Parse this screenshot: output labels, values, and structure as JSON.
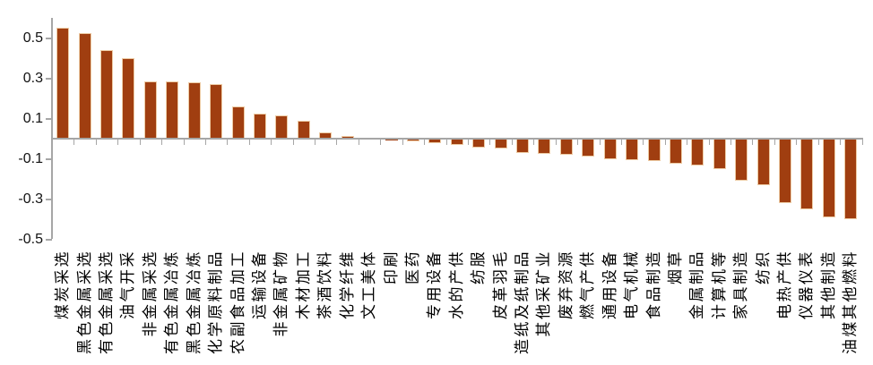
{
  "chart_data": {
    "type": "bar",
    "title": "",
    "xlabel": "",
    "ylabel": "",
    "grid": "off",
    "legend": "none",
    "bar_color": "#a03e10",
    "bar_border_color": "#edcba4",
    "axis_color": "#a6a6a6",
    "text_color": "#000000",
    "ylim": [
      -0.5,
      0.6
    ],
    "ytick_labels": [
      "0.5",
      "0.3",
      "0.1",
      "-0.1",
      "-0.3",
      "-0.5"
    ],
    "ytick_values": [
      0.5,
      0.3,
      0.1,
      -0.1,
      -0.3,
      -0.5
    ],
    "categories": [
      "煤炭采选",
      "黑色金属采选",
      "有色金属采选",
      "油气开采",
      "非金属采选",
      "有色金属冶炼",
      "黑色金属冶炼",
      "化学原料制品",
      "农副食品加工",
      "运输设备",
      "非金属矿物",
      "木材加工",
      "茶酒饮料",
      "化学纤维",
      "文工美体",
      "印刷",
      "医药",
      "专用设备",
      "水的产供",
      "纺服",
      "皮革羽毛",
      "造纸及纸制品",
      "其他采矿业",
      "废弃资源",
      "燃气产供",
      "通用设备",
      "电气机械",
      "食品制造",
      "烟草",
      "金属制品",
      "计算机等",
      "家具制造",
      "纺织",
      "电热产供",
      "仪器仪表",
      "其他制造",
      "油煤其他燃料"
    ],
    "values": [
      0.55,
      0.525,
      0.44,
      0.4,
      0.285,
      0.285,
      0.28,
      0.27,
      0.16,
      0.125,
      0.115,
      0.09,
      0.03,
      0.015,
      0.002,
      -0.008,
      -0.015,
      -0.02,
      -0.03,
      -0.045,
      -0.05,
      -0.07,
      -0.075,
      -0.08,
      -0.09,
      -0.1,
      -0.105,
      -0.11,
      -0.125,
      -0.135,
      -0.15,
      -0.21,
      -0.23,
      -0.32,
      -0.35,
      -0.39,
      -0.4
    ]
  }
}
